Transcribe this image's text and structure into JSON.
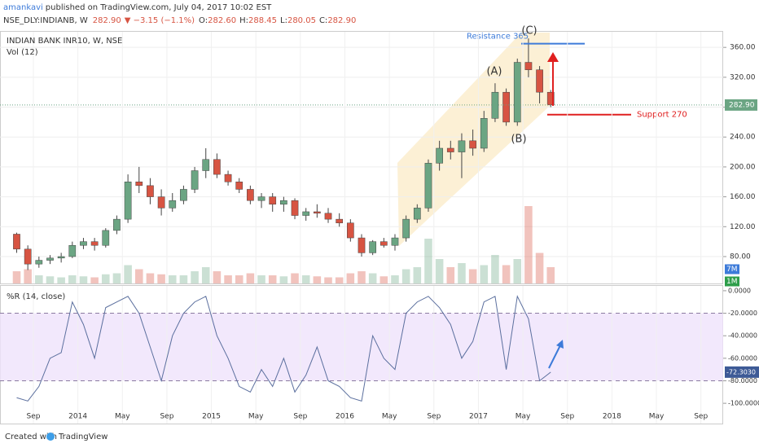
{
  "header": {
    "author": "amankavi",
    "published": "published on TradingView.com, July 04, 2017 10:02 EST",
    "symbol": "NSE_DLY:INDIANB, W",
    "last": "282.90",
    "change": "▼ −3.15 (−1.1%)",
    "ohlc": [
      [
        "O:",
        "282.60"
      ],
      [
        "H:",
        "288.45"
      ],
      [
        "L:",
        "280.05"
      ],
      [
        "C:",
        "282.90"
      ]
    ]
  },
  "footer": {
    "created": "Created with",
    "brand": "TradingView"
  },
  "chart_data": [
    {
      "type": "candlestick",
      "title": "INDIAN BANK INR10, W, NSE",
      "volume_title": "Vol (12)",
      "x": [
        "2013-07",
        "2013-08",
        "2013-09",
        "2013-10",
        "2013-11",
        "2013-12",
        "2014-01",
        "2014-02",
        "2014-03",
        "2014-04",
        "2014-05",
        "2014-06",
        "2014-07",
        "2014-08",
        "2014-09",
        "2014-10",
        "2014-11",
        "2014-12",
        "2015-01",
        "2015-02",
        "2015-03",
        "2015-04",
        "2015-05",
        "2015-06",
        "2015-07",
        "2015-08",
        "2015-09",
        "2015-10",
        "2015-11",
        "2015-12",
        "2016-01",
        "2016-02",
        "2016-03",
        "2016-04",
        "2016-05",
        "2016-06",
        "2016-07",
        "2016-08",
        "2016-09",
        "2016-10",
        "2016-11",
        "2016-12",
        "2017-01",
        "2017-02",
        "2017-03",
        "2017-04",
        "2017-05",
        "2017-06",
        "2017-07"
      ],
      "open": [
        110,
        90,
        70,
        75,
        78,
        80,
        95,
        100,
        95,
        115,
        130,
        180,
        175,
        160,
        145,
        155,
        170,
        195,
        210,
        190,
        180,
        170,
        155,
        160,
        150,
        155,
        135,
        140,
        138,
        130,
        125,
        105,
        85,
        100,
        95,
        105,
        130,
        145,
        205,
        225,
        220,
        235,
        225,
        265,
        300,
        260,
        340,
        330,
        300
      ],
      "high": [
        112,
        95,
        80,
        82,
        85,
        100,
        105,
        105,
        118,
        135,
        190,
        200,
        185,
        170,
        165,
        175,
        200,
        225,
        218,
        195,
        185,
        175,
        165,
        165,
        160,
        158,
        145,
        150,
        145,
        138,
        130,
        110,
        102,
        105,
        110,
        135,
        150,
        210,
        235,
        235,
        245,
        250,
        275,
        312,
        305,
        345,
        372,
        335,
        303
      ],
      "low": [
        85,
        62,
        65,
        70,
        72,
        78,
        90,
        88,
        92,
        110,
        125,
        165,
        150,
        135,
        140,
        150,
        165,
        185,
        185,
        175,
        165,
        150,
        145,
        140,
        140,
        130,
        128,
        132,
        125,
        120,
        100,
        80,
        82,
        92,
        88,
        100,
        125,
        140,
        195,
        210,
        185,
        215,
        220,
        260,
        255,
        255,
        320,
        285,
        280
      ],
      "close": [
        90,
        70,
        75,
        78,
        80,
        95,
        100,
        95,
        115,
        130,
        180,
        175,
        160,
        145,
        155,
        170,
        195,
        210,
        190,
        180,
        170,
        155,
        160,
        150,
        155,
        135,
        140,
        138,
        130,
        125,
        105,
        85,
        100,
        95,
        105,
        130,
        145,
        205,
        225,
        220,
        235,
        225,
        265,
        300,
        260,
        340,
        330,
        300,
        283
      ],
      "volume": [
        6000000,
        7000000,
        4000000,
        3500000,
        3000000,
        4000000,
        3500000,
        3000000,
        4500000,
        5000000,
        9000000,
        7000000,
        5000000,
        4500000,
        4000000,
        4000000,
        6000000,
        8000000,
        6000000,
        4000000,
        4000000,
        5000000,
        4000000,
        4000000,
        3500000,
        5000000,
        4000000,
        3500000,
        3000000,
        3000000,
        5000000,
        6000000,
        5000000,
        3500000,
        4000000,
        7000000,
        8000000,
        22000000,
        12000000,
        8000000,
        10000000,
        7000000,
        9000000,
        14000000,
        9000000,
        12000000,
        38000000,
        15000000,
        8000000
      ],
      "up_color": "#6ba583",
      "down_color": "#d75442",
      "xlim": [
        "2013-06",
        "2018-11"
      ],
      "ylim": [
        44,
        382
      ],
      "vlim": [
        0,
        40000000
      ],
      "yticks": [
        {
          "value": 80,
          "label": "80.00"
        },
        {
          "value": 120,
          "label": "120.00"
        },
        {
          "value": 160,
          "label": "160.00"
        },
        {
          "value": 200,
          "label": "200.00"
        },
        {
          "value": 240,
          "label": "240.00"
        },
        {
          "value": 280,
          "label": "280.00"
        },
        {
          "value": 320,
          "label": "320.00"
        },
        {
          "value": 360,
          "label": "360.00"
        }
      ],
      "last": {
        "value": 282.9,
        "label": "282.90"
      },
      "volume_badges": [
        {
          "value": 7000000,
          "label": "7M"
        },
        {
          "value": 1000000,
          "label": "1M"
        }
      ],
      "levels": [
        {
          "text": "Resistance 365",
          "value": 365,
          "color": "#3d7bd9"
        },
        {
          "text": "Support 270",
          "value": 270,
          "color": "#e02020"
        }
      ],
      "wave_labels": [
        "(A)",
        "(B)",
        "(C)"
      ],
      "grid": true
    },
    {
      "type": "line",
      "title": "%R (14, close)",
      "color": "#5b6f9e",
      "x": [
        "2013-07",
        "2013-08",
        "2013-09",
        "2013-10",
        "2013-11",
        "2013-12",
        "2014-01",
        "2014-02",
        "2014-03",
        "2014-04",
        "2014-05",
        "2014-06",
        "2014-07",
        "2014-08",
        "2014-09",
        "2014-10",
        "2014-11",
        "2014-12",
        "2015-01",
        "2015-02",
        "2015-03",
        "2015-04",
        "2015-05",
        "2015-06",
        "2015-07",
        "2015-08",
        "2015-09",
        "2015-10",
        "2015-11",
        "2015-12",
        "2016-01",
        "2016-02",
        "2016-03",
        "2016-04",
        "2016-05",
        "2016-06",
        "2016-07",
        "2016-08",
        "2016-09",
        "2016-10",
        "2016-11",
        "2016-12",
        "2017-01",
        "2017-02",
        "2017-03",
        "2017-04",
        "2017-05",
        "2017-06",
        "2017-07"
      ],
      "values": [
        -95,
        -98,
        -85,
        -60,
        -55,
        -10,
        -30,
        -60,
        -15,
        -10,
        -5,
        -20,
        -50,
        -80,
        -40,
        -20,
        -10,
        -5,
        -40,
        -60,
        -85,
        -90,
        -70,
        -85,
        -60,
        -90,
        -75,
        -50,
        -80,
        -85,
        -95,
        -98,
        -40,
        -60,
        -70,
        -20,
        -10,
        -5,
        -15,
        -30,
        -60,
        -45,
        -10,
        -5,
        -70,
        -5,
        -25,
        -80,
        -72.303
      ],
      "xlim": [
        "2013-06",
        "2018-11"
      ],
      "ylim": [
        -118,
        5
      ],
      "yticks": [
        {
          "value": 0,
          "label": "0.0000"
        },
        {
          "value": -20,
          "label": "-20.0000"
        },
        {
          "value": -40,
          "label": "-40.0000"
        },
        {
          "value": -60,
          "label": "-60.0000"
        },
        {
          "value": -80,
          "label": "-80.0000"
        },
        {
          "value": -100,
          "label": "-100.0000"
        }
      ],
      "bands": [
        -20,
        -80
      ],
      "last": {
        "value": -72.303,
        "label": "-72.3030"
      },
      "xticks": [
        {
          "value": "2013-09",
          "label": "Sep"
        },
        {
          "value": "2014-01",
          "label": "2014"
        },
        {
          "value": "2014-05",
          "label": "May"
        },
        {
          "value": "2014-09",
          "label": "Sep"
        },
        {
          "value": "2015-01",
          "label": "2015"
        },
        {
          "value": "2015-05",
          "label": "May"
        },
        {
          "value": "2015-09",
          "label": "Sep"
        },
        {
          "value": "2016-01",
          "label": "2016"
        },
        {
          "value": "2016-05",
          "label": "May"
        },
        {
          "value": "2016-09",
          "label": "Sep"
        },
        {
          "value": "2017-01",
          "label": "2017"
        },
        {
          "value": "2017-05",
          "label": "May"
        },
        {
          "value": "2017-09",
          "label": "Sep"
        },
        {
          "value": "2018-01",
          "label": "2018"
        },
        {
          "value": "2018-05",
          "label": "May"
        },
        {
          "value": "2018-09",
          "label": "Sep"
        }
      ]
    }
  ]
}
